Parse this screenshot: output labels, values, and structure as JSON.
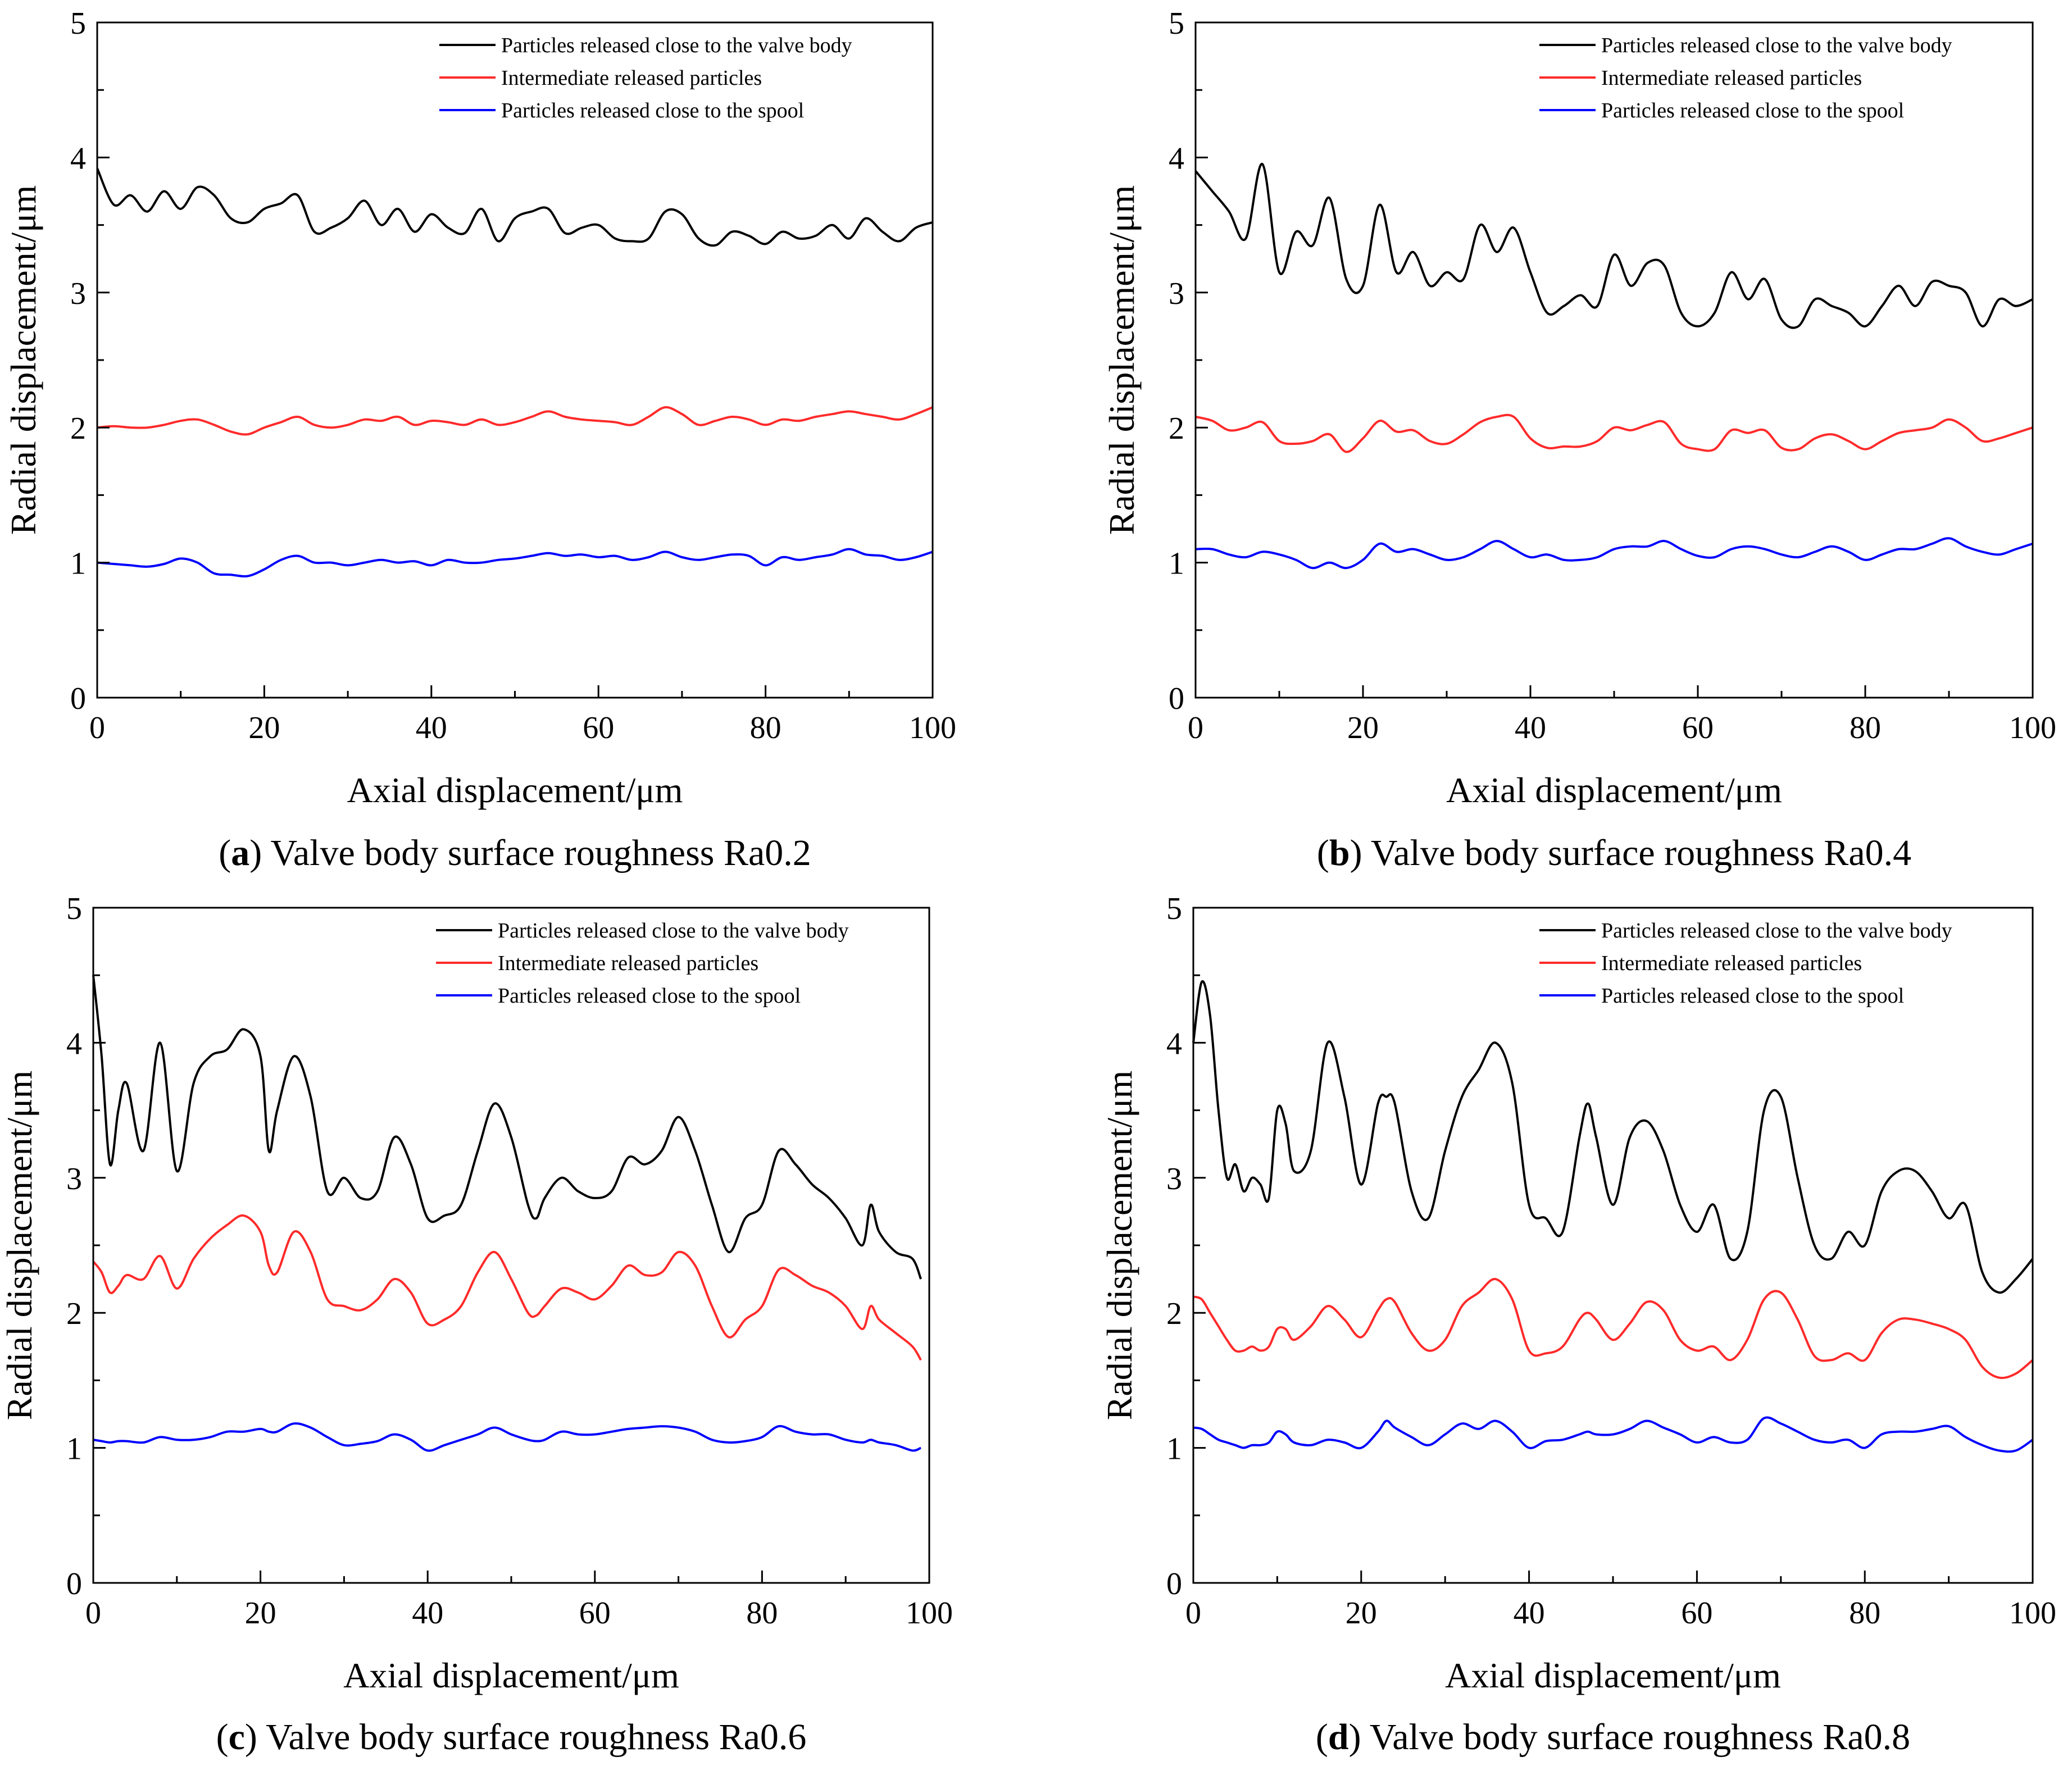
{
  "figure": {
    "panels": [
      {
        "caption_letter": "a",
        "caption_text": "Valve body surface roughness Ra0.2"
      },
      {
        "caption_letter": "b",
        "caption_text": "Valve body surface roughness Ra0.4"
      },
      {
        "caption_letter": "c",
        "caption_text": "Valve body surface roughness Ra0.6"
      },
      {
        "caption_letter": "d",
        "caption_text": "Valve body surface roughness Ra0.8"
      }
    ]
  },
  "colors": {
    "valve_body": "#000000",
    "intermediate": "#ff2a2a",
    "spool": "#0000ff"
  },
  "chart_data": [
    {
      "type": "line",
      "title": "(a) Valve body surface roughness Ra0.2",
      "xlabel": "Axial displacement/μm",
      "ylabel": "Radial displacement/μm",
      "xlim": [
        0,
        100
      ],
      "ylim": [
        0,
        5
      ],
      "xticks": [
        "0",
        "20",
        "40",
        "60",
        "80",
        "100"
      ],
      "yticks": [
        "0",
        "1",
        "2",
        "3",
        "4",
        "5"
      ],
      "legend_position": "top-right",
      "grid": false,
      "x": [
        0,
        2,
        4,
        6,
        8,
        10,
        12,
        14,
        16,
        18,
        20,
        22,
        24,
        26,
        28,
        30,
        32,
        34,
        36,
        38,
        40,
        42,
        44,
        46,
        48,
        50,
        52,
        54,
        56,
        58,
        60,
        62,
        64,
        66,
        68,
        70,
        72,
        74,
        76,
        78,
        80,
        82,
        84,
        86,
        88,
        90,
        92,
        94,
        96,
        98,
        100
      ],
      "series": [
        {
          "name": "Particles released close to the valve body",
          "color": "#000000",
          "values": [
            3.92,
            3.65,
            3.72,
            3.6,
            3.75,
            3.62,
            3.78,
            3.72,
            3.55,
            3.52,
            3.62,
            3.66,
            3.72,
            3.45,
            3.48,
            3.55,
            3.68,
            3.5,
            3.62,
            3.45,
            3.58,
            3.48,
            3.44,
            3.62,
            3.38,
            3.55,
            3.6,
            3.62,
            3.44,
            3.48,
            3.5,
            3.4,
            3.38,
            3.4,
            3.6,
            3.58,
            3.4,
            3.35,
            3.45,
            3.42,
            3.36,
            3.45,
            3.4,
            3.42,
            3.5,
            3.4,
            3.55,
            3.45,
            3.38,
            3.48,
            3.52
          ]
        },
        {
          "name": "Intermediate released particles",
          "color": "#ff2a2a",
          "values": [
            2.0,
            2.01,
            2.0,
            2.0,
            2.02,
            2.05,
            2.06,
            2.02,
            1.97,
            1.95,
            2.0,
            2.04,
            2.08,
            2.02,
            2.0,
            2.02,
            2.06,
            2.05,
            2.08,
            2.02,
            2.05,
            2.04,
            2.02,
            2.06,
            2.02,
            2.04,
            2.08,
            2.12,
            2.08,
            2.06,
            2.05,
            2.04,
            2.02,
            2.08,
            2.15,
            2.1,
            2.02,
            2.05,
            2.08,
            2.06,
            2.02,
            2.06,
            2.05,
            2.08,
            2.1,
            2.12,
            2.1,
            2.08,
            2.06,
            2.1,
            2.15
          ]
        },
        {
          "name": "Particles released close to the spool",
          "color": "#0000ff",
          "values": [
            1.0,
            0.99,
            0.98,
            0.97,
            0.99,
            1.03,
            1.0,
            0.92,
            0.91,
            0.9,
            0.95,
            1.02,
            1.05,
            1.0,
            1.0,
            0.98,
            1.0,
            1.02,
            1.0,
            1.01,
            0.98,
            1.02,
            1.0,
            1.0,
            1.02,
            1.03,
            1.05,
            1.07,
            1.05,
            1.06,
            1.04,
            1.05,
            1.02,
            1.04,
            1.08,
            1.04,
            1.02,
            1.04,
            1.06,
            1.05,
            0.98,
            1.04,
            1.02,
            1.04,
            1.06,
            1.1,
            1.06,
            1.05,
            1.02,
            1.04,
            1.08
          ]
        }
      ]
    },
    {
      "type": "line",
      "title": "(b) Valve body surface roughness Ra0.4",
      "xlabel": "Axial displacement/μm",
      "ylabel": "Radial displacement/μm",
      "xlim": [
        0,
        100
      ],
      "ylim": [
        0,
        5
      ],
      "xticks": [
        "0",
        "20",
        "40",
        "60",
        "80",
        "100"
      ],
      "yticks": [
        "0",
        "1",
        "2",
        "3",
        "4",
        "5"
      ],
      "legend_position": "top-right",
      "grid": false,
      "x": [
        0,
        2,
        4,
        6,
        8,
        10,
        12,
        14,
        16,
        18,
        20,
        22,
        24,
        26,
        28,
        30,
        32,
        34,
        36,
        38,
        40,
        42,
        44,
        46,
        48,
        50,
        52,
        54,
        56,
        58,
        60,
        62,
        64,
        66,
        68,
        70,
        72,
        74,
        76,
        78,
        80,
        82,
        84,
        86,
        88,
        90,
        92,
        94,
        96,
        98,
        100
      ],
      "series": [
        {
          "name": "Particles released close to the valve body",
          "color": "#000000",
          "values": [
            3.9,
            3.75,
            3.6,
            3.4,
            3.95,
            3.15,
            3.45,
            3.35,
            3.7,
            3.1,
            3.05,
            3.65,
            3.15,
            3.3,
            3.05,
            3.15,
            3.1,
            3.5,
            3.3,
            3.48,
            3.15,
            2.85,
            2.9,
            2.98,
            2.9,
            3.28,
            3.05,
            3.22,
            3.2,
            2.85,
            2.75,
            2.85,
            3.15,
            2.95,
            3.1,
            2.8,
            2.75,
            2.95,
            2.9,
            2.85,
            2.75,
            2.9,
            3.05,
            2.9,
            3.08,
            3.05,
            3.0,
            2.75,
            2.95,
            2.9,
            2.95
          ]
        },
        {
          "name": "Intermediate released particles",
          "color": "#ff2a2a",
          "values": [
            2.08,
            2.05,
            1.98,
            2.0,
            2.04,
            1.9,
            1.88,
            1.9,
            1.95,
            1.82,
            1.92,
            2.05,
            1.97,
            1.98,
            1.9,
            1.88,
            1.95,
            2.04,
            2.08,
            2.08,
            1.92,
            1.85,
            1.86,
            1.86,
            1.9,
            2.0,
            1.98,
            2.02,
            2.04,
            1.88,
            1.84,
            1.84,
            1.98,
            1.96,
            1.98,
            1.85,
            1.84,
            1.92,
            1.95,
            1.9,
            1.84,
            1.9,
            1.96,
            1.98,
            2.0,
            2.06,
            2.0,
            1.9,
            1.92,
            1.96,
            2.0
          ]
        },
        {
          "name": "Particles released close to the spool",
          "color": "#0000ff",
          "values": [
            1.1,
            1.1,
            1.06,
            1.04,
            1.08,
            1.06,
            1.02,
            0.96,
            1.0,
            0.96,
            1.02,
            1.14,
            1.08,
            1.1,
            1.06,
            1.02,
            1.04,
            1.1,
            1.16,
            1.1,
            1.04,
            1.06,
            1.02,
            1.02,
            1.04,
            1.1,
            1.12,
            1.12,
            1.16,
            1.1,
            1.05,
            1.04,
            1.1,
            1.12,
            1.1,
            1.06,
            1.04,
            1.08,
            1.12,
            1.08,
            1.02,
            1.06,
            1.1,
            1.1,
            1.14,
            1.18,
            1.12,
            1.08,
            1.06,
            1.1,
            1.14
          ]
        }
      ]
    },
    {
      "type": "line",
      "title": "(c) Valve body surface roughness Ra0.6",
      "xlabel": "Axial displacement/μm",
      "ylabel": "Radial displacement/μm",
      "xlim": [
        0,
        100
      ],
      "ylim": [
        0,
        5
      ],
      "xticks": [
        "0",
        "20",
        "40",
        "60",
        "80",
        "100"
      ],
      "yticks": [
        "0",
        "1",
        "2",
        "3",
        "4",
        "5"
      ],
      "legend_position": "top-right",
      "grid": false,
      "x": [
        0,
        1,
        2,
        3,
        4,
        6,
        8,
        10,
        12,
        14,
        16,
        18,
        20,
        21,
        22,
        24,
        26,
        28,
        30,
        32,
        34,
        36,
        38,
        40,
        42,
        44,
        46,
        48,
        50,
        52,
        53,
        54,
        56,
        58,
        60,
        62,
        64,
        66,
        68,
        70,
        72,
        74,
        76,
        78,
        80,
        82,
        84,
        86,
        88,
        90,
        92,
        93,
        94,
        96,
        98,
        99
      ],
      "series": [
        {
          "name": "Particles released close to the valve body",
          "color": "#000000",
          "values": [
            4.5,
            3.9,
            3.1,
            3.5,
            3.7,
            3.2,
            4.0,
            3.05,
            3.7,
            3.9,
            3.95,
            4.1,
            3.9,
            3.2,
            3.5,
            3.9,
            3.6,
            2.9,
            3.0,
            2.85,
            2.9,
            3.3,
            3.1,
            2.7,
            2.72,
            2.8,
            3.2,
            3.55,
            3.3,
            2.8,
            2.7,
            2.85,
            3.0,
            2.9,
            2.85,
            2.9,
            3.15,
            3.1,
            3.2,
            3.45,
            3.2,
            2.8,
            2.45,
            2.7,
            2.8,
            3.2,
            3.1,
            2.95,
            2.85,
            2.7,
            2.5,
            2.8,
            2.6,
            2.45,
            2.4,
            2.25
          ]
        },
        {
          "name": "Intermediate released particles",
          "color": "#ff2a2a",
          "values": [
            2.38,
            2.3,
            2.15,
            2.2,
            2.28,
            2.25,
            2.42,
            2.18,
            2.4,
            2.55,
            2.65,
            2.72,
            2.6,
            2.35,
            2.3,
            2.6,
            2.45,
            2.1,
            2.05,
            2.02,
            2.1,
            2.25,
            2.15,
            1.92,
            1.95,
            2.05,
            2.3,
            2.45,
            2.25,
            2.0,
            1.98,
            2.05,
            2.18,
            2.15,
            2.1,
            2.2,
            2.35,
            2.28,
            2.3,
            2.45,
            2.35,
            2.05,
            1.82,
            1.95,
            2.05,
            2.32,
            2.28,
            2.2,
            2.15,
            2.05,
            1.88,
            2.05,
            1.95,
            1.85,
            1.75,
            1.65
          ]
        },
        {
          "name": "Particles released close to the spool",
          "color": "#0000ff",
          "values": [
            1.06,
            1.05,
            1.04,
            1.05,
            1.05,
            1.04,
            1.08,
            1.06,
            1.06,
            1.08,
            1.12,
            1.12,
            1.14,
            1.12,
            1.12,
            1.18,
            1.15,
            1.08,
            1.02,
            1.03,
            1.05,
            1.1,
            1.06,
            0.98,
            1.02,
            1.06,
            1.1,
            1.15,
            1.1,
            1.06,
            1.05,
            1.06,
            1.12,
            1.1,
            1.1,
            1.12,
            1.14,
            1.15,
            1.16,
            1.15,
            1.12,
            1.06,
            1.04,
            1.05,
            1.08,
            1.16,
            1.12,
            1.1,
            1.1,
            1.06,
            1.04,
            1.06,
            1.04,
            1.02,
            0.98,
            1.0
          ]
        }
      ]
    },
    {
      "type": "line",
      "title": "(d) Valve body surface roughness Ra0.8",
      "xlabel": "Axial displacement/μm",
      "ylabel": "Radial displacement/μm",
      "xlim": [
        0,
        100
      ],
      "ylim": [
        0,
        5
      ],
      "xticks": [
        "0",
        "20",
        "40",
        "60",
        "80",
        "100"
      ],
      "yticks": [
        "0",
        "1",
        "2",
        "3",
        "4",
        "5"
      ],
      "legend_position": "top-right",
      "grid": false,
      "x": [
        0,
        1,
        2,
        3,
        4,
        5,
        6,
        7,
        8,
        9,
        10,
        11,
        12,
        14,
        16,
        18,
        20,
        22,
        23,
        24,
        26,
        28,
        30,
        32,
        34,
        36,
        38,
        40,
        42,
        44,
        46,
        47,
        48,
        50,
        52,
        54,
        56,
        58,
        60,
        62,
        64,
        66,
        68,
        70,
        72,
        74,
        76,
        78,
        80,
        82,
        84,
        86,
        88,
        90,
        92,
        94,
        96,
        98,
        100
      ],
      "series": [
        {
          "name": "Particles released close to the valve body",
          "color": "#000000",
          "values": [
            4.0,
            4.45,
            4.2,
            3.5,
            3.0,
            3.1,
            2.9,
            3.0,
            2.95,
            2.85,
            3.5,
            3.4,
            3.05,
            3.2,
            4.0,
            3.6,
            2.95,
            3.55,
            3.6,
            3.55,
            2.9,
            2.7,
            3.2,
            3.6,
            3.8,
            4.0,
            3.7,
            2.8,
            2.7,
            2.6,
            3.3,
            3.55,
            3.3,
            2.8,
            3.3,
            3.42,
            3.2,
            2.8,
            2.6,
            2.8,
            2.4,
            2.6,
            3.5,
            3.6,
            3.0,
            2.5,
            2.4,
            2.6,
            2.5,
            2.9,
            3.05,
            3.05,
            2.9,
            2.7,
            2.8,
            2.3,
            2.15,
            2.25,
            2.4
          ]
        },
        {
          "name": "Intermediate released particles",
          "color": "#ff2a2a",
          "values": [
            2.12,
            2.1,
            2.0,
            1.9,
            1.8,
            1.72,
            1.72,
            1.75,
            1.72,
            1.75,
            1.88,
            1.88,
            1.8,
            1.9,
            2.05,
            1.95,
            1.82,
            2.02,
            2.1,
            2.08,
            1.85,
            1.72,
            1.8,
            2.05,
            2.15,
            2.25,
            2.1,
            1.72,
            1.7,
            1.75,
            1.95,
            2.0,
            1.95,
            1.8,
            1.92,
            2.08,
            2.02,
            1.8,
            1.72,
            1.75,
            1.65,
            1.8,
            2.1,
            2.15,
            1.95,
            1.68,
            1.65,
            1.7,
            1.65,
            1.85,
            1.95,
            1.95,
            1.92,
            1.88,
            1.8,
            1.6,
            1.52,
            1.55,
            1.65
          ]
        },
        {
          "name": "Particles released close to the spool",
          "color": "#0000ff",
          "values": [
            1.15,
            1.14,
            1.1,
            1.06,
            1.04,
            1.02,
            1.0,
            1.02,
            1.02,
            1.04,
            1.12,
            1.1,
            1.04,
            1.02,
            1.06,
            1.04,
            1.0,
            1.12,
            1.2,
            1.15,
            1.08,
            1.02,
            1.1,
            1.18,
            1.14,
            1.2,
            1.12,
            1.0,
            1.05,
            1.06,
            1.1,
            1.12,
            1.1,
            1.1,
            1.14,
            1.2,
            1.15,
            1.1,
            1.04,
            1.08,
            1.04,
            1.06,
            1.22,
            1.18,
            1.12,
            1.06,
            1.04,
            1.06,
            1.0,
            1.1,
            1.12,
            1.12,
            1.14,
            1.16,
            1.08,
            1.02,
            0.98,
            0.98,
            1.06
          ]
        }
      ]
    }
  ]
}
